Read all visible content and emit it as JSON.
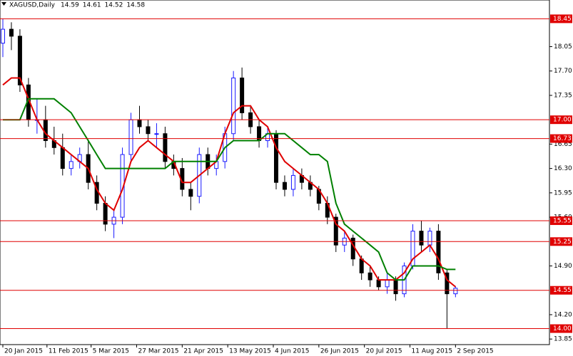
{
  "chart_data": {
    "type": "candlestick",
    "symbol": "XAGUSD,Daily",
    "quote": [
      14.59,
      14.61,
      14.52,
      14.58
    ],
    "x": [
      0,
      3,
      6,
      9,
      12,
      15,
      18,
      21,
      24,
      27,
      30,
      33,
      36,
      39,
      42,
      45,
      48,
      51,
      54,
      57,
      60,
      63,
      66,
      69,
      72,
      75,
      78,
      81,
      84,
      87,
      90,
      93,
      96,
      99,
      102,
      105,
      108,
      111,
      114,
      117,
      120,
      123,
      126,
      129,
      132,
      135,
      138,
      141,
      144,
      147,
      150,
      153,
      156,
      159
    ],
    "open": [
      18.1,
      18.3,
      18.2,
      17.5,
      17.0,
      17.0,
      16.7,
      16.6,
      16.3,
      16.4,
      16.5,
      16.1,
      15.8,
      15.5,
      15.6,
      16.5,
      17.0,
      16.9,
      16.8,
      16.8,
      16.4,
      16.3,
      16.0,
      15.9,
      16.5,
      16.3,
      16.4,
      16.8,
      17.6,
      17.1,
      16.9,
      16.7,
      16.8,
      16.1,
      16.0,
      16.2,
      16.1,
      16.0,
      15.8,
      15.6,
      15.2,
      15.3,
      15.0,
      14.8,
      14.7,
      14.6,
      14.7,
      14.5,
      14.9,
      15.4,
      15.2,
      15.4,
      14.8,
      14.5
    ],
    "high": [
      18.45,
      18.4,
      18.3,
      17.6,
      17.3,
      17.2,
      16.9,
      16.8,
      16.5,
      16.6,
      16.7,
      16.2,
      15.9,
      15.7,
      16.6,
      17.1,
      17.2,
      17.0,
      16.95,
      16.9,
      16.5,
      16.45,
      16.1,
      16.6,
      16.6,
      16.5,
      16.9,
      17.7,
      17.75,
      17.2,
      17.0,
      16.9,
      16.85,
      16.2,
      16.3,
      16.3,
      16.2,
      16.05,
      15.9,
      15.65,
      15.4,
      15.35,
      15.05,
      14.9,
      14.75,
      14.8,
      14.75,
      14.95,
      15.5,
      15.55,
      15.45,
      15.5,
      14.85,
      14.61
    ],
    "low": [
      17.9,
      18.0,
      17.4,
      16.9,
      16.8,
      16.6,
      16.5,
      16.2,
      16.2,
      16.3,
      16.0,
      15.7,
      15.4,
      15.3,
      15.5,
      16.4,
      16.8,
      16.7,
      16.6,
      16.3,
      16.2,
      15.9,
      15.7,
      15.8,
      16.2,
      16.2,
      16.3,
      16.7,
      17.0,
      16.8,
      16.6,
      16.6,
      16.0,
      15.9,
      15.9,
      16.0,
      15.9,
      15.7,
      15.5,
      15.1,
      15.1,
      14.9,
      14.7,
      14.6,
      14.55,
      14.5,
      14.4,
      14.45,
      14.85,
      15.1,
      15.1,
      14.7,
      14.0,
      14.45
    ],
    "close": [
      18.3,
      18.2,
      17.5,
      17.0,
      17.0,
      16.7,
      16.6,
      16.3,
      16.4,
      16.5,
      16.1,
      15.8,
      15.5,
      15.6,
      16.5,
      17.0,
      16.9,
      16.8,
      16.8,
      16.4,
      16.3,
      16.0,
      15.9,
      16.5,
      16.3,
      16.4,
      16.8,
      17.6,
      17.1,
      16.9,
      16.7,
      16.8,
      16.1,
      16.0,
      16.2,
      16.1,
      16.0,
      15.8,
      15.6,
      15.2,
      15.3,
      15.0,
      14.8,
      14.7,
      14.6,
      14.7,
      14.5,
      14.9,
      15.4,
      15.2,
      15.4,
      14.8,
      14.5,
      14.58
    ],
    "lines": [
      {
        "color": "#e00000",
        "values": [
          17.5,
          17.6,
          17.6,
          17.3,
          17.0,
          16.8,
          16.7,
          16.6,
          16.5,
          16.4,
          16.3,
          16.0,
          15.8,
          15.7,
          16.0,
          16.4,
          16.6,
          16.7,
          16.6,
          16.5,
          16.4,
          16.1,
          16.1,
          16.2,
          16.3,
          16.4,
          16.8,
          17.1,
          17.2,
          17.2,
          17.0,
          16.9,
          16.6,
          16.4,
          16.3,
          16.2,
          16.1,
          16.0,
          15.8,
          15.5,
          15.4,
          15.2,
          15.0,
          14.9,
          14.7,
          14.7,
          14.7,
          14.8,
          15.0,
          15.1,
          15.2,
          15.0,
          14.7,
          14.6
        ]
      },
      {
        "color": "#008000",
        "values": [
          17.0,
          17.0,
          17.0,
          17.3,
          17.3,
          17.3,
          17.3,
          17.2,
          17.1,
          16.9,
          16.7,
          16.5,
          16.3,
          16.3,
          16.3,
          16.3,
          16.3,
          16.3,
          16.3,
          16.3,
          16.4,
          16.4,
          16.4,
          16.4,
          16.4,
          16.4,
          16.6,
          16.7,
          16.7,
          16.7,
          16.7,
          16.8,
          16.8,
          16.8,
          16.7,
          16.6,
          16.5,
          16.5,
          16.4,
          15.8,
          15.5,
          15.4,
          15.3,
          15.2,
          15.1,
          14.8,
          14.7,
          14.7,
          14.9,
          14.9,
          14.9,
          14.9,
          14.85,
          14.85
        ]
      }
    ],
    "up_color": "#1a1aff",
    "down_color": "#000000",
    "level_color": "#e00000",
    "levels": [
      18.45,
      {
        "value": 17.0,
        "label": "17.00"
      },
      16.73,
      15.55,
      15.25,
      14.55,
      {
        "value": 14.0,
        "label": "14.00"
      }
    ],
    "xlim": [
      -1,
      192
    ],
    "xticks": [
      {
        "value": 0,
        "label": "20 Jan 2015"
      },
      {
        "value": 15.5,
        "label": "11 Feb 2015"
      },
      {
        "value": 31,
        "label": "5 Mar 2015"
      },
      {
        "value": 47,
        "label": "27 Mar 2015"
      },
      {
        "value": 63,
        "label": "21 Apr 2015"
      },
      {
        "value": 79,
        "label": "13 May 2015"
      },
      {
        "value": 95,
        "label": "4 Jun 2015"
      },
      {
        "value": 111,
        "label": "26 Jun 2015"
      },
      {
        "value": 127,
        "label": "20 Jul 2015"
      },
      {
        "value": 143,
        "label": "11 Aug 2015"
      },
      {
        "value": 159,
        "label": "2 Sep 2015"
      }
    ],
    "ylim": [
      13.77,
      18.72
    ],
    "yticks": [
      18.05,
      {
        "value": 17.7,
        "label": "17.70"
      },
      17.35,
      16.65,
      {
        "value": 16.3,
        "label": "16.30"
      },
      15.95,
      {
        "value": 15.6,
        "label": "15.60"
      },
      {
        "value": 14.9,
        "label": "14.90"
      },
      {
        "value": 14.2,
        "label": "14.20"
      },
      13.85
    ]
  }
}
